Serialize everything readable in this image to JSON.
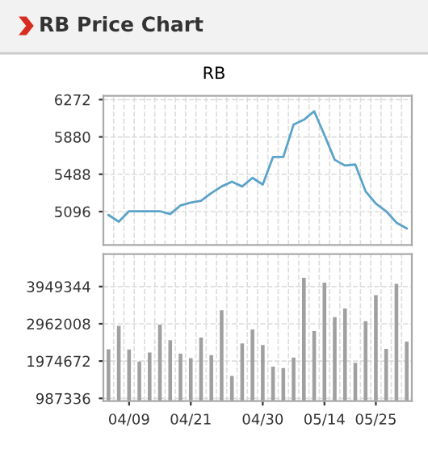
{
  "chart_data": [
    {
      "type": "line",
      "title": "RB Price Chart",
      "subtitle": "RB",
      "categories": [
        null,
        null,
        null,
        null,
        null,
        null,
        null,
        null,
        null,
        null,
        null,
        null,
        null,
        null,
        null,
        null,
        null,
        null,
        null,
        null,
        null,
        null,
        null,
        null,
        null,
        null,
        null,
        null,
        null,
        null
      ],
      "series": [
        {
          "color": "#5ba3c9",
          "values": [
            5060,
            4990,
            5100,
            5100,
            5100,
            5100,
            5070,
            5160,
            5190,
            5210,
            5290,
            5360,
            5410,
            5360,
            5450,
            5380,
            5670,
            5670,
            6010,
            6060,
            6150,
            5900,
            5640,
            5580,
            5590,
            5310,
            5180,
            5100,
            4980,
            4920
          ]
        }
      ],
      "ylim": [
        4745,
        6312
      ],
      "yticks": [
        5096,
        5488,
        5880,
        6272
      ],
      "grid": true,
      "marker": "none",
      "tick_labels": "y"
    },
    {
      "type": "bar",
      "categories": [
        null,
        null,
        "04/09",
        null,
        null,
        null,
        null,
        null,
        "04/21",
        null,
        null,
        null,
        null,
        null,
        null,
        "04/30",
        null,
        null,
        null,
        null,
        null,
        "05/14",
        null,
        null,
        null,
        null,
        "05/25",
        null,
        null,
        null
      ],
      "series": [
        {
          "color": "#a0a0a0",
          "values": [
            2290000,
            2910000,
            2280000,
            1960000,
            2200000,
            2940000,
            2530000,
            2170000,
            2050000,
            2600000,
            2130000,
            3320000,
            1580000,
            2440000,
            2810000,
            2400000,
            1830000,
            1790000,
            2070000,
            4180000,
            2770000,
            4050000,
            3140000,
            3370000,
            1930000,
            3030000,
            3720000,
            2300000,
            4020000,
            2490000
          ]
        }
      ],
      "ylim": [
        916000,
        4810000
      ],
      "yticks": [
        987336,
        1974672,
        2962008,
        3949344
      ],
      "grid": true
    }
  ]
}
